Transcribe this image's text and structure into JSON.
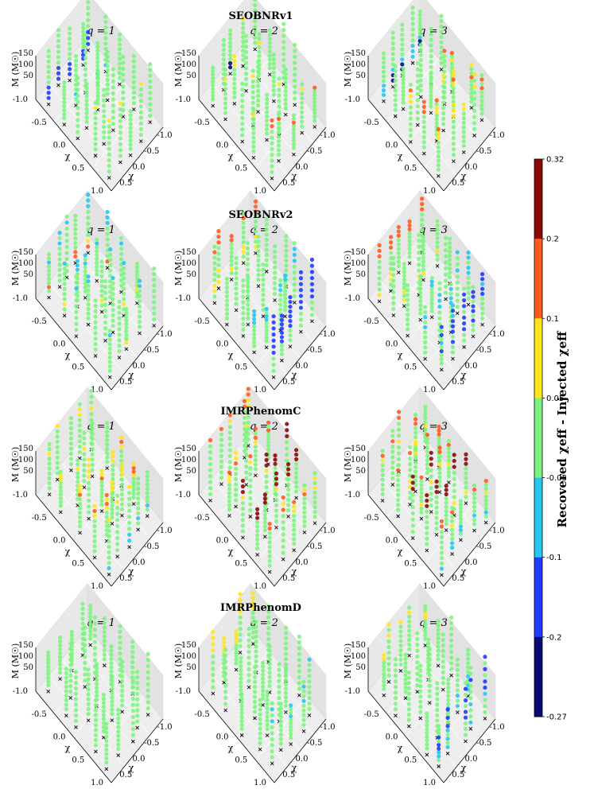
{
  "chart_data": {
    "type": "scatter",
    "title": "",
    "row_titles": [
      "SEOBNRv1",
      "SEOBNRv2",
      "IMRPhenomC",
      "IMRPhenomD"
    ],
    "column_titles": [
      "q = 1",
      "q = 2",
      "q = 3"
    ],
    "axes": {
      "zlabel": "M (M☉)",
      "xlabel": "χ",
      "zticks": [
        "150",
        "100",
        "50"
      ],
      "x_ticks_left": [
        "-1.0",
        "-0.5",
        "0.0",
        "0.5",
        "1.0"
      ],
      "x_ticks_right": [
        "0.5",
        "0.0",
        "-0.5",
        "-1.0"
      ],
      "chi_range": [
        -1.0,
        1.0
      ],
      "mass_range": [
        0,
        150
      ]
    },
    "colorbar": {
      "label": "Recovered χeff - Injected χeff",
      "tick_labels": [
        "0.32",
        "0.2",
        "0.1",
        "0.05",
        "-0.05",
        "-0.1",
        "-0.2",
        "-0.27"
      ],
      "bins": [
        {
          "from": 0.2,
          "to": 0.32,
          "color": "#8b0a08"
        },
        {
          "from": 0.1,
          "to": 0.2,
          "color": "#ff5a1f"
        },
        {
          "from": 0.05,
          "to": 0.1,
          "color": "#ffe61a"
        },
        {
          "from": -0.05,
          "to": 0.05,
          "color": "#7cf57e"
        },
        {
          "from": -0.1,
          "to": -0.05,
          "color": "#26c8f0"
        },
        {
          "from": -0.2,
          "to": -0.1,
          "color": "#1f3bff"
        },
        {
          "from": -0.27,
          "to": -0.2,
          "color": "#0a0a72"
        }
      ]
    },
    "panels": [
      {
        "row": "SEOBNRv1",
        "q": 1,
        "dominant": "-0.05 to 0.05",
        "notable": "-0.2 to -0.1 near χ=-1, low M"
      },
      {
        "row": "SEOBNRv1",
        "q": 2,
        "dominant": "-0.05 to 0.05",
        "notable": "-0.27 to -0.2 at χ=-1, low M"
      },
      {
        "row": "SEOBNRv1",
        "q": 3,
        "dominant": "-0.05 to 0.05",
        "notable": "0.05 to 0.2 at high M; -0.27 to -0.1 at χ=-1"
      },
      {
        "row": "SEOBNRv2",
        "q": 1,
        "dominant": "-0.05 to 0.05",
        "notable": "0.1 to 0.2 near low M"
      },
      {
        "row": "SEOBNRv2",
        "q": 2,
        "dominant": "-0.05 to 0.05",
        "notable": "-0.2 to -0.05 at χ=1"
      },
      {
        "row": "SEOBNRv2",
        "q": 3,
        "dominant": "-0.05 to 0.05",
        "notable": "-0.2 to -0.05 at χ≥0.5"
      },
      {
        "row": "IMRPhenomC",
        "q": 1,
        "dominant": "-0.05 to 0.05",
        "notable": "0.05 to 0.2 at high M"
      },
      {
        "row": "IMRPhenomC",
        "q": 2,
        "dominant": "-0.05 to 0.05",
        "notable": "0.2 to 0.32 at high M"
      },
      {
        "row": "IMRPhenomC",
        "q": 3,
        "dominant": "-0.05 to 0.05",
        "notable": "0.1 to 0.32 at high M"
      },
      {
        "row": "IMRPhenomD",
        "q": 1,
        "dominant": "-0.05 to 0.05",
        "notable": "none"
      },
      {
        "row": "IMRPhenomD",
        "q": 2,
        "dominant": "-0.05 to 0.05",
        "notable": "0.05 to 0.1 at χ=-1 high M"
      },
      {
        "row": "IMRPhenomD",
        "q": 3,
        "dominant": "-0.05 to 0.05",
        "notable": "-0.2 to -0.05 at χ≥0.5"
      }
    ]
  }
}
